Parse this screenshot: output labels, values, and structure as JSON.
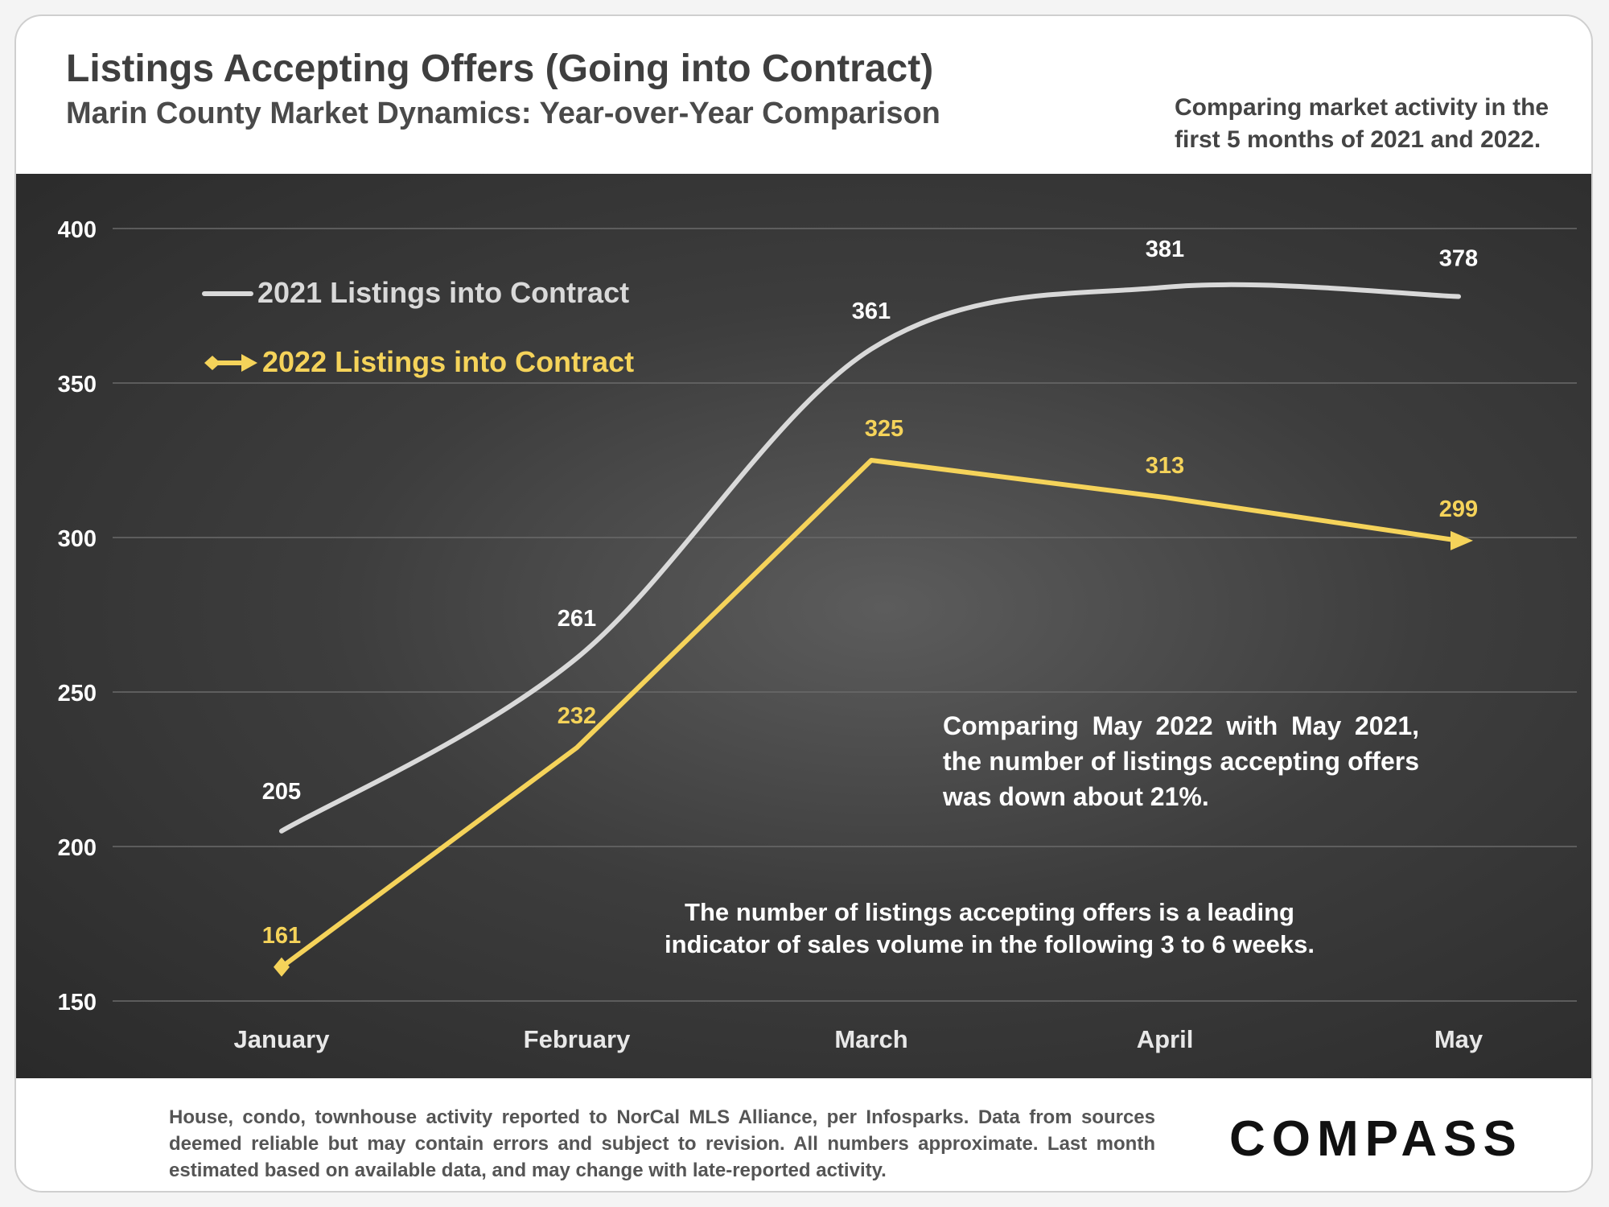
{
  "header": {
    "title": "Listings Accepting Offers (Going into Contract)",
    "subtitle": "Marin County Market Dynamics: Year-over-Year Comparison",
    "note": "Comparing market activity in the first 5 months of 2021 and 2022."
  },
  "chart_data": {
    "type": "line",
    "categories": [
      "January",
      "February",
      "March",
      "April",
      "May"
    ],
    "series": [
      {
        "name": "2021 Listings into Contract",
        "values": [
          205,
          261,
          361,
          381,
          378
        ],
        "color": "#d9d9d9"
      },
      {
        "name": "2022 Listings into Contract",
        "values": [
          161,
          232,
          325,
          313,
          299
        ],
        "color": "#f5d35a"
      }
    ],
    "ylim": [
      150,
      400
    ],
    "yticks": [
      "400",
      "350",
      "300",
      "250",
      "200",
      "150"
    ],
    "grid": true,
    "legend_position": "top-left",
    "annotations": [
      "Comparing May 2022 with May 2021, the number of listings accepting offers was down about 21%.",
      "The number of listings accepting offers is a leading indicator of sales volume in the following 3 to 6 weeks."
    ]
  },
  "footer": {
    "note": "House, condo, townhouse activity reported to NorCal MLS Alliance, per Infosparks. Data from sources deemed reliable but may contain errors and subject to revision. All numbers approximate. Last month estimated based on available data, and may change with late-reported activity.",
    "logo": "COMPASS"
  }
}
